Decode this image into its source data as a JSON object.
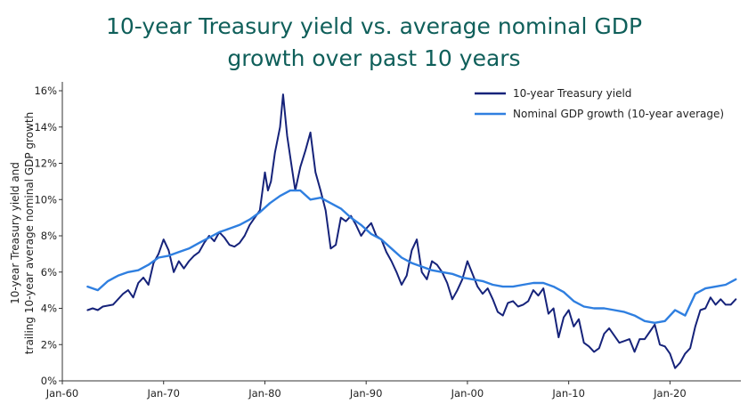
{
  "chart_data": {
    "type": "line",
    "title_line1": "10-year Treasury yield vs. average nominal GDP",
    "title_line2": "growth over past 10 years",
    "ylabel_line1": "10-year Treasury yield and",
    "ylabel_line2": "trailing 10-year average nominal GDP growth",
    "xlabel": "",
    "xlim": [
      1960,
      2027
    ],
    "ylim": [
      0,
      16
    ],
    "x_ticks": [
      {
        "x": 1960,
        "label": "Jan-60"
      },
      {
        "x": 1970,
        "label": "Jan-70"
      },
      {
        "x": 1980,
        "label": "Jan-80"
      },
      {
        "x": 1990,
        "label": "Jan-90"
      },
      {
        "x": 2000,
        "label": "Jan-00"
      },
      {
        "x": 2010,
        "label": "Jan-10"
      },
      {
        "x": 2020,
        "label": "Jan-20"
      }
    ],
    "y_ticks": [
      {
        "y": 0,
        "label": "0%"
      },
      {
        "y": 2,
        "label": "2%"
      },
      {
        "y": 4,
        "label": "4%"
      },
      {
        "y": 6,
        "label": "6%"
      },
      {
        "y": 8,
        "label": "8%"
      },
      {
        "y": 10,
        "label": "10%"
      },
      {
        "y": 12,
        "label": "12%"
      },
      {
        "y": 14,
        "label": "14%"
      },
      {
        "y": 16,
        "label": "16%"
      }
    ],
    "grid": false,
    "legend_position": "top-right",
    "series": [
      {
        "name": "10-year Treasury yield",
        "color": "#16237a",
        "x": [
          1962.5,
          1963,
          1963.5,
          1964,
          1965,
          1966,
          1966.5,
          1967,
          1967.5,
          1968,
          1968.5,
          1969,
          1969.5,
          1970,
          1970.5,
          1971,
          1971.5,
          1972,
          1972.5,
          1973,
          1973.5,
          1974,
          1974.5,
          1975,
          1975.5,
          1976,
          1976.5,
          1977,
          1977.5,
          1978,
          1978.5,
          1979,
          1979.5,
          1980,
          1980.3,
          1980.6,
          1981,
          1981.5,
          1981.8,
          1982.2,
          1982.6,
          1983,
          1983.5,
          1984,
          1984.5,
          1985,
          1985.5,
          1986,
          1986.5,
          1987,
          1987.5,
          1988,
          1988.5,
          1989,
          1989.5,
          1990,
          1990.5,
          1991,
          1991.5,
          1992,
          1992.5,
          1993,
          1993.5,
          1994,
          1994.5,
          1995,
          1995.5,
          1996,
          1996.5,
          1997,
          1997.5,
          1998,
          1998.5,
          1999,
          1999.5,
          2000,
          2000.5,
          2001,
          2001.5,
          2002,
          2002.5,
          2003,
          2003.5,
          2004,
          2004.5,
          2005,
          2005.5,
          2006,
          2006.5,
          2007,
          2007.5,
          2008,
          2008.5,
          2009,
          2009.5,
          2010,
          2010.5,
          2011,
          2011.5,
          2012,
          2012.5,
          2013,
          2013.5,
          2014,
          2014.5,
          2015,
          2015.5,
          2016,
          2016.5,
          2017,
          2017.5,
          2018,
          2018.5,
          2019,
          2019.5,
          2020,
          2020.5,
          2021,
          2021.5,
          2022,
          2022.5,
          2023,
          2023.5,
          2024,
          2024.5,
          2025,
          2025.5,
          2026,
          2026.5
        ],
        "values": [
          3.9,
          4.0,
          3.9,
          4.1,
          4.2,
          4.8,
          5.0,
          4.6,
          5.4,
          5.7,
          5.3,
          6.5,
          7.0,
          7.8,
          7.2,
          6.0,
          6.6,
          6.2,
          6.6,
          6.9,
          7.1,
          7.6,
          8.0,
          7.7,
          8.2,
          7.9,
          7.5,
          7.4,
          7.6,
          8.0,
          8.6,
          9.0,
          9.4,
          11.5,
          10.5,
          11.0,
          12.6,
          14.0,
          15.8,
          13.5,
          12.0,
          10.5,
          11.8,
          12.7,
          13.7,
          11.5,
          10.5,
          9.4,
          7.3,
          7.5,
          9.0,
          8.8,
          9.1,
          8.6,
          8.0,
          8.4,
          8.7,
          8.0,
          7.8,
          7.1,
          6.6,
          6.0,
          5.3,
          5.8,
          7.2,
          7.8,
          6.0,
          5.6,
          6.6,
          6.4,
          6.0,
          5.4,
          4.5,
          5.0,
          5.6,
          6.6,
          5.9,
          5.2,
          4.8,
          5.1,
          4.5,
          3.8,
          3.6,
          4.3,
          4.4,
          4.1,
          4.2,
          4.4,
          5.0,
          4.7,
          5.1,
          3.7,
          4.0,
          2.4,
          3.5,
          3.9,
          3.0,
          3.4,
          2.1,
          1.9,
          1.6,
          1.8,
          2.6,
          2.9,
          2.5,
          2.1,
          2.2,
          2.3,
          1.6,
          2.3,
          2.3,
          2.7,
          3.1,
          2.0,
          1.9,
          1.5,
          0.7,
          1.0,
          1.5,
          1.8,
          3.0,
          3.9,
          4.0,
          4.6,
          4.2,
          4.5,
          4.2,
          4.2,
          4.5
        ]
      },
      {
        "name": "Nominal GDP growth (10-year average)",
        "color": "#2f7fe0",
        "x": [
          1962.5,
          1963.5,
          1964.5,
          1965.5,
          1966.5,
          1967.5,
          1968.5,
          1969.5,
          1970.5,
          1971.5,
          1972.5,
          1973.5,
          1974.5,
          1975.5,
          1976.5,
          1977.5,
          1978.5,
          1979.5,
          1980.5,
          1981.5,
          1982.5,
          1983.5,
          1984.5,
          1985.5,
          1986.5,
          1987.5,
          1988.5,
          1989.5,
          1990.5,
          1991.5,
          1992.5,
          1993.5,
          1994.5,
          1995.5,
          1996.5,
          1997.5,
          1998.5,
          1999.5,
          2000.5,
          2001.5,
          2002.5,
          2003.5,
          2004.5,
          2005.5,
          2006.5,
          2007.5,
          2008.5,
          2009.5,
          2010.5,
          2011.5,
          2012.5,
          2013.5,
          2014.5,
          2015.5,
          2016.5,
          2017.5,
          2018.5,
          2019.5,
          2020.5,
          2021.5,
          2022.5,
          2023.5,
          2024.5,
          2025.5,
          2026.5
        ],
        "values": [
          5.2,
          5.0,
          5.5,
          5.8,
          6.0,
          6.1,
          6.4,
          6.8,
          6.9,
          7.1,
          7.3,
          7.6,
          7.9,
          8.2,
          8.4,
          8.6,
          8.9,
          9.3,
          9.8,
          10.2,
          10.5,
          10.5,
          10.0,
          10.1,
          9.8,
          9.5,
          9.0,
          8.6,
          8.1,
          7.8,
          7.3,
          6.8,
          6.5,
          6.3,
          6.1,
          6.0,
          5.9,
          5.7,
          5.6,
          5.5,
          5.3,
          5.2,
          5.2,
          5.3,
          5.4,
          5.4,
          5.2,
          4.9,
          4.4,
          4.1,
          4.0,
          4.0,
          3.9,
          3.8,
          3.6,
          3.3,
          3.2,
          3.3,
          3.9,
          3.6,
          4.8,
          5.1,
          5.2,
          5.3,
          5.6
        ]
      }
    ]
  }
}
